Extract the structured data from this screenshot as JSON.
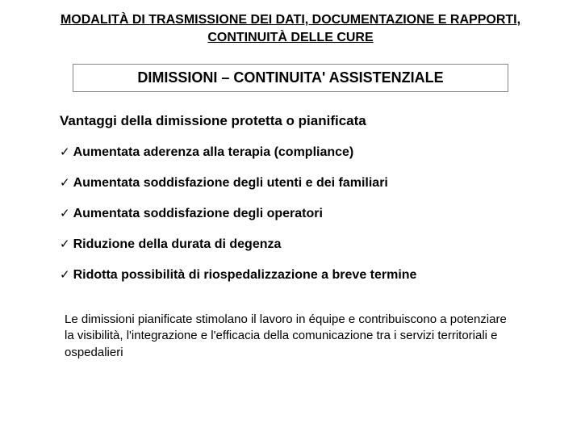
{
  "title_line1": "MODALITÀ  DI TRASMISSIONE DEI DATI, DOCUMENTAZIONE E  RAPPORTI,",
  "title_line2": "CONTINUITÀ DELLE CURE",
  "subtitle": "DIMISSIONI – CONTINUITA' ASSISTENZIALE",
  "advantages_heading": "Vantaggi della dimissione protetta o pianificata",
  "bullets": {
    "b0": "Aumentata aderenza alla terapia (compliance)",
    "b1": "Aumentata soddisfazione degli utenti e dei familiari",
    "b2": "Aumentata soddisfazione degli operatori",
    "b3": "Riduzione della durata di degenza",
    "b4": "Ridotta possibilità di riospedalizzazione a breve termine"
  },
  "checkmark": "✓",
  "footer": "Le dimissioni pianificate stimolano il lavoro in équipe e contribuiscono a potenziare la visibilità, l'integrazione e l'efficacia della comunicazione tra i servizi territoriali e ospedalieri",
  "colors": {
    "background": "#ffffff",
    "text": "#000000",
    "box_border": "#888888"
  },
  "fonts": {
    "title_size": 16,
    "subtitle_size": 18,
    "heading_size": 17,
    "bullet_size": 16,
    "footer_size": 15
  }
}
